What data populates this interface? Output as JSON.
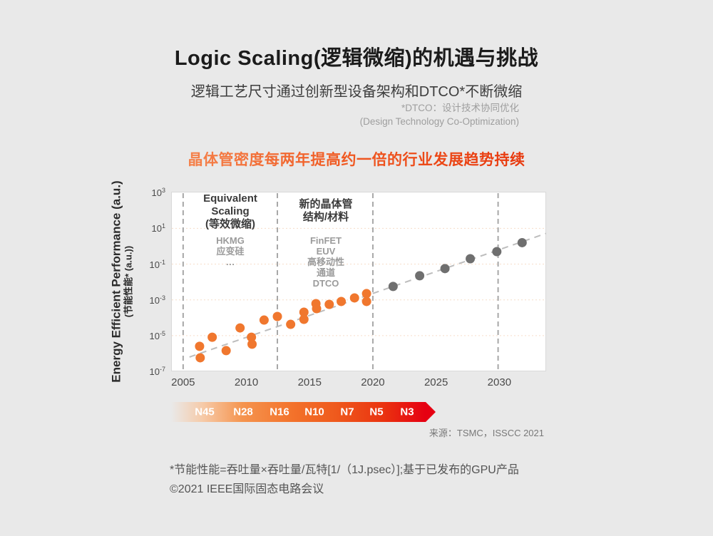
{
  "page": {
    "title": "Logic Scaling(逻辑微缩)的机遇与挑战",
    "subtitle": "逻辑工艺尺寸通过创新型设备架构和DTCO*不断微缩",
    "note_line1": "*DTCO：设计技术协同优化",
    "note_line2": "(Design Technology Co-Optimization)",
    "headline": "晶体管密度每两年提高约一倍的行业发展趋势持续",
    "source": "来源：TSMC，ISSCC 2021",
    "footnote1": "*节能性能=吞吐量×吞吐量/瓦特[1/（1J.psec）];基于已发布的GPU产品",
    "footnote2": "©2021 IEEE国际固态电路会议"
  },
  "colors": {
    "background": "#e9e9e9",
    "plot_background": "#ffffff",
    "plot_border": "#d9d9d9",
    "gridline": "#f6ddc9",
    "divider": "#a8a8a8",
    "trend": "#bdbdbd",
    "orange_point": "#f0772e",
    "gray_point": "#6f6f6f",
    "headline_gradient": [
      "#f5814a",
      "#f05a22",
      "#e8380d"
    ],
    "band_gradient": [
      "rgba(246,202,168,0)",
      "#f6caa8",
      "#f5944e",
      "#f3722b",
      "#ef5a1d",
      "#ea3410",
      "#e60012"
    ]
  },
  "chart_data": {
    "type": "scatter",
    "title": "",
    "ylabel_en": "Energy Efficient Performance (a.u.)",
    "ylabel_zh": "(节能性能* (a.u.))",
    "xlabel": "",
    "x_ticks": [
      2005,
      2010,
      2015,
      2020,
      2025,
      2030
    ],
    "y_ticks_exponents": [
      3,
      1,
      -1,
      -3,
      -5,
      -7
    ],
    "x_range": [
      2004.05,
      2033.7
    ],
    "y_log_range": [
      -7,
      3.05
    ],
    "grid": "horizontal-dotted",
    "gridline_exponents": [
      1,
      -1,
      -3,
      -5
    ],
    "divider_years": [
      2005.0,
      2012.45,
      2020.0,
      2029.9
    ],
    "trend": {
      "x": [
        2005.5,
        2033.7
      ],
      "log_y": [
        -6.2,
        0.72
      ]
    },
    "series": [
      {
        "name": "orange_published",
        "color": "#f0772e",
        "points_year_log10": [
          [
            2006.3,
            -5.6
          ],
          [
            2006.35,
            -6.24
          ],
          [
            2007.3,
            -5.09
          ],
          [
            2008.4,
            -5.84
          ],
          [
            2009.5,
            -4.57
          ],
          [
            2010.4,
            -5.09
          ],
          [
            2010.45,
            -5.48
          ],
          [
            2011.4,
            -4.13
          ],
          [
            2012.45,
            -3.93
          ],
          [
            2013.5,
            -4.37
          ],
          [
            2014.55,
            -3.69
          ],
          [
            2014.55,
            -4.09
          ],
          [
            2015.5,
            -3.21
          ],
          [
            2015.55,
            -3.49
          ],
          [
            2016.55,
            -3.25
          ],
          [
            2017.5,
            -3.09
          ],
          [
            2018.55,
            -2.89
          ],
          [
            2019.5,
            -2.65
          ],
          [
            2019.5,
            -3.09
          ]
        ]
      },
      {
        "name": "gray_projected",
        "color": "#6f6f6f",
        "points_year_log10": [
          [
            2021.6,
            -2.25
          ],
          [
            2023.7,
            -1.65
          ],
          [
            2025.7,
            -1.25
          ],
          [
            2027.7,
            -0.7
          ],
          [
            2029.8,
            -0.3
          ],
          [
            2031.8,
            0.2
          ]
        ]
      }
    ],
    "annotations": [
      {
        "title_lines": [
          "Equivalent",
          "Scaling",
          "(等效微缩)"
        ],
        "items": [
          "HKMG",
          "应变硅",
          "…"
        ]
      },
      {
        "title_lines": [
          "新的晶体管",
          "结构/材料"
        ],
        "items": [
          "FinFET",
          "EUV",
          "高移动性",
          "通道",
          "DTCO"
        ]
      }
    ],
    "nodes": [
      "N45",
      "N28",
      "N16",
      "N10",
      "N7",
      "N5",
      "N3"
    ]
  }
}
